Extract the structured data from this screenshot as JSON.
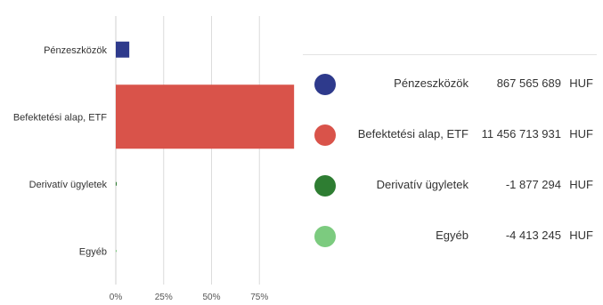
{
  "chart_data": {
    "type": "bar",
    "orientation": "horizontal",
    "categories": [
      "Pénzeszközök",
      "Befektetési alap, ETF",
      "Derivatív ügyletek",
      "Egyéb"
    ],
    "values": [
      7.05,
      93.1,
      -0.015,
      -0.036
    ],
    "xlim": [
      0,
      100
    ],
    "x_ticks": [
      "0%",
      "25%",
      "50%",
      "75%"
    ],
    "x_tick_values": [
      0,
      25,
      50,
      75
    ],
    "grid": true,
    "legend_placement": "right",
    "colors": [
      "#2e3a8c",
      "#d9534a",
      "#2e7d32",
      "#7ccb7f"
    ]
  },
  "legend": {
    "items": [
      {
        "name": "Pénzeszközök",
        "value": "867 565 689",
        "unit": "HUF",
        "color": "#2e3a8c"
      },
      {
        "name": "Befektetési alap, ETF",
        "value": "11 456 713 931",
        "unit": "HUF",
        "color": "#d9534a"
      },
      {
        "name": "Derivatív ügyletek",
        "value": "-1 877 294",
        "unit": "HUF",
        "color": "#2e7d32"
      },
      {
        "name": "Egyéb",
        "value": "-4 413 245",
        "unit": "HUF",
        "color": "#7ccb7f"
      }
    ]
  }
}
